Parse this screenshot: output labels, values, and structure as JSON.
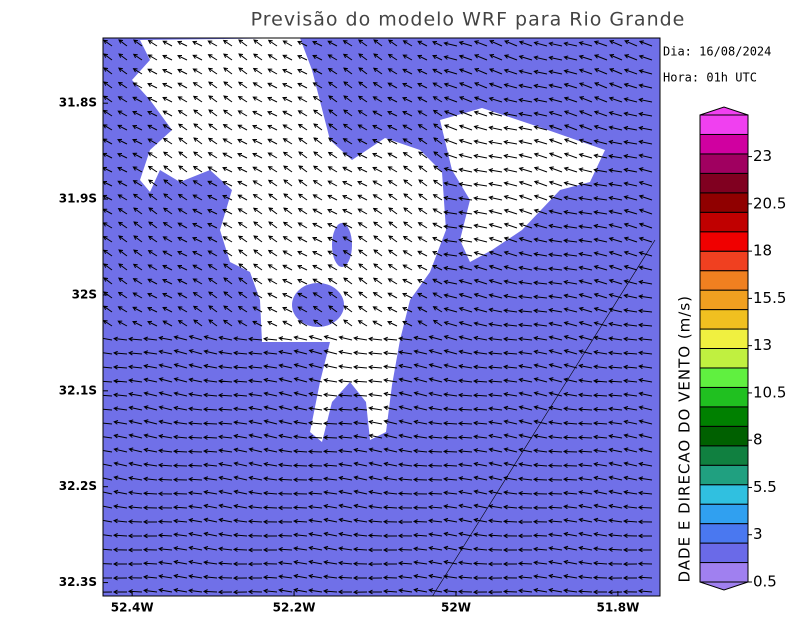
{
  "title": "Previsão do modelo WRF para Rio Grande",
  "info": {
    "date": "Dia: 16/08/2024",
    "hour": "Hora: 01h UTC"
  },
  "map": {
    "xlim": [
      -52.436,
      -51.748
    ],
    "ylim": [
      -32.314,
      -31.732
    ],
    "xticks": [
      {
        "value": -52.4,
        "label": "52.4W"
      },
      {
        "value": -52.2,
        "label": "52.2W"
      },
      {
        "value": -52.0,
        "label": "52W"
      },
      {
        "value": -51.8,
        "label": "51.8W"
      }
    ],
    "yticks": [
      {
        "value": -31.8,
        "label": "31.8S"
      },
      {
        "value": -31.9,
        "label": "31.9S"
      },
      {
        "value": -32.0,
        "label": "32S"
      },
      {
        "value": -32.1,
        "label": "32.1S"
      },
      {
        "value": -32.2,
        "label": "32.2S"
      },
      {
        "value": -32.3,
        "label": "32.3S"
      }
    ],
    "water_color": "#7070e8",
    "land_color": "#ffffff"
  },
  "colorbar": {
    "title": "DADE E DIRECAO DO VENTO (m/s)",
    "range": [
      0.5,
      25.2
    ],
    "ticks": [
      0.5,
      3,
      5.5,
      8,
      10.5,
      13,
      15.5,
      18,
      20.5,
      23
    ],
    "colors": [
      "#a080f0",
      "#6a6ae8",
      "#4a78f0",
      "#30a0f0",
      "#30c0e0",
      "#20a080",
      "#108040",
      "#006000",
      "#008000",
      "#20c020",
      "#60f040",
      "#c0f040",
      "#f0f040",
      "#f0c020",
      "#f0a020",
      "#f08020",
      "#f04020",
      "#f00000",
      "#c00000",
      "#900000",
      "#800020",
      "#a00060",
      "#d000a0",
      "#f040f0"
    ]
  }
}
